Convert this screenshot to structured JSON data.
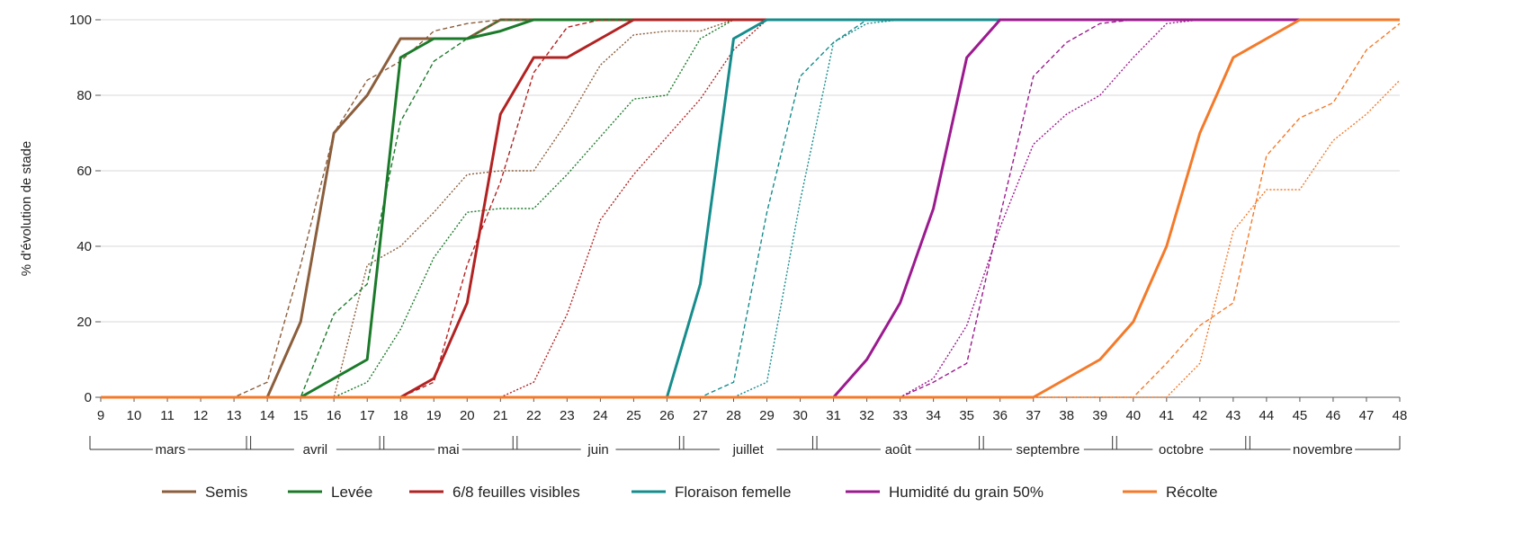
{
  "chart_data": {
    "type": "line",
    "ylabel": "% d'évolution de stade",
    "xlabel": "",
    "ylim": [
      0,
      100
    ],
    "xlim": [
      9,
      48
    ],
    "y_ticks": [
      "0",
      "20",
      "40",
      "60",
      "80",
      "100"
    ],
    "x_ticks": [
      "9",
      "10",
      "11",
      "12",
      "13",
      "14",
      "15",
      "16",
      "17",
      "18",
      "19",
      "20",
      "21",
      "22",
      "23",
      "24",
      "25",
      "26",
      "27",
      "28",
      "29",
      "30",
      "31",
      "32",
      "33",
      "34",
      "35",
      "36",
      "37",
      "38",
      "39",
      "40",
      "41",
      "42",
      "43",
      "44",
      "45",
      "46",
      "47",
      "48"
    ],
    "months": [
      {
        "label": "mars",
        "start": 9,
        "end": 13.5
      },
      {
        "label": "avril",
        "start": 13.7,
        "end": 17.5
      },
      {
        "label": "mai",
        "start": 17.7,
        "end": 21.5
      },
      {
        "label": "juin",
        "start": 21.7,
        "end": 26.5
      },
      {
        "label": "juillet",
        "start": 26.7,
        "end": 30.5
      },
      {
        "label": "août",
        "start": 30.7,
        "end": 35.5
      },
      {
        "label": "septembre",
        "start": 35.7,
        "end": 39.5
      },
      {
        "label": "octobre",
        "start": 39.7,
        "end": 43.5
      },
      {
        "label": "novembre",
        "start": 43.7,
        "end": 48
      }
    ],
    "grid": "horizontal",
    "legend_position": "bottom",
    "series": [
      {
        "name": "Semis",
        "color": "#8B5E3C",
        "style": "solid",
        "x": [
          9,
          14,
          15,
          16,
          17,
          18,
          19,
          20,
          21,
          22,
          48
        ],
        "y": [
          0,
          0,
          20,
          70,
          80,
          95,
          95,
          95,
          100,
          100,
          100
        ]
      },
      {
        "name": "",
        "color": "#8B5E3C",
        "style": "dashed",
        "x": [
          9,
          13,
          14,
          15,
          16,
          17,
          18,
          19,
          20,
          21,
          48
        ],
        "y": [
          0,
          0,
          4,
          35,
          70,
          84,
          89,
          97,
          99,
          100,
          100
        ]
      },
      {
        "name": "",
        "color": "#8B5E3C",
        "style": "dotted",
        "x": [
          9,
          16,
          17,
          18,
          19,
          20,
          21,
          22,
          23,
          24,
          25,
          26,
          27,
          28,
          29,
          48
        ],
        "y": [
          0,
          0,
          35,
          40,
          49,
          59,
          60,
          60,
          73,
          88,
          96,
          97,
          97,
          100,
          100,
          100
        ]
      },
      {
        "name": "Levée",
        "color": "#1B7A2A",
        "style": "solid",
        "x": [
          9,
          15,
          16,
          17,
          18,
          19,
          20,
          21,
          22,
          48
        ],
        "y": [
          0,
          0,
          5,
          10,
          90,
          95,
          95,
          97,
          100,
          100
        ]
      },
      {
        "name": "",
        "color": "#1B7A2A",
        "style": "dashed",
        "x": [
          9,
          15,
          16,
          17,
          18,
          19,
          20,
          21,
          22,
          48
        ],
        "y": [
          0,
          0,
          22,
          30,
          73,
          89,
          95,
          100,
          100,
          100
        ]
      },
      {
        "name": "",
        "color": "#1B7A2A",
        "style": "dotted",
        "x": [
          9,
          16,
          17,
          18,
          19,
          20,
          21,
          22,
          23,
          24,
          25,
          26,
          27,
          28,
          29,
          48
        ],
        "y": [
          0,
          0,
          4,
          18,
          37,
          49,
          50,
          50,
          59,
          69,
          79,
          80,
          95,
          100,
          100,
          100
        ]
      },
      {
        "name": "6/8 feuilles visibles",
        "color": "#B22222",
        "style": "solid",
        "x": [
          9,
          18,
          19,
          20,
          21,
          22,
          23,
          24,
          25,
          48
        ],
        "y": [
          0,
          0,
          5,
          25,
          75,
          90,
          90,
          95,
          100,
          100
        ]
      },
      {
        "name": "",
        "color": "#B22222",
        "style": "dashed",
        "x": [
          9,
          18,
          19,
          20,
          21,
          22,
          23,
          24,
          25,
          48
        ],
        "y": [
          0,
          0,
          4,
          35,
          57,
          86,
          98,
          100,
          100,
          100
        ]
      },
      {
        "name": "",
        "color": "#B22222",
        "style": "dotted",
        "x": [
          9,
          21,
          22,
          23,
          24,
          25,
          26,
          27,
          28,
          29,
          30,
          48
        ],
        "y": [
          0,
          0,
          4,
          22,
          47,
          59,
          69,
          79,
          92,
          100,
          100,
          100
        ]
      },
      {
        "name": "Floraison femelle",
        "color": "#168C8C",
        "style": "solid",
        "x": [
          9,
          26,
          27,
          28,
          29,
          48
        ],
        "y": [
          0,
          0,
          30,
          95,
          100,
          100
        ]
      },
      {
        "name": "",
        "color": "#168C8C",
        "style": "dashed",
        "x": [
          9,
          27,
          28,
          29,
          30,
          31,
          32,
          33,
          48
        ],
        "y": [
          0,
          0,
          4,
          49,
          85,
          94,
          100,
          100,
          100
        ]
      },
      {
        "name": "",
        "color": "#168C8C",
        "style": "dotted",
        "x": [
          9,
          28,
          29,
          30,
          31,
          32,
          33,
          48
        ],
        "y": [
          0,
          0,
          4,
          52,
          94,
          99,
          100,
          100
        ]
      },
      {
        "name": "Humidité du grain 50%",
        "color": "#9B1B8E",
        "style": "solid",
        "x": [
          9,
          31,
          32,
          33,
          34,
          35,
          36,
          48
        ],
        "y": [
          0,
          0,
          10,
          25,
          50,
          90,
          100,
          100
        ]
      },
      {
        "name": "",
        "color": "#9B1B8E",
        "style": "dashed",
        "x": [
          9,
          33,
          34,
          35,
          36,
          37,
          38,
          39,
          40,
          48
        ],
        "y": [
          0,
          0,
          4,
          9,
          48,
          85,
          94,
          99,
          100,
          100
        ]
      },
      {
        "name": "",
        "color": "#9B1B8E",
        "style": "dotted",
        "x": [
          9,
          33,
          34,
          35,
          36,
          37,
          38,
          39,
          40,
          41,
          42,
          48
        ],
        "y": [
          0,
          0,
          5,
          19,
          45,
          67,
          75,
          80,
          90,
          99,
          100,
          100
        ]
      },
      {
        "name": "Récolte",
        "color": "#F47A2A",
        "style": "solid",
        "x": [
          9,
          37,
          38,
          39,
          40,
          41,
          42,
          43,
          44,
          45,
          48
        ],
        "y": [
          0,
          0,
          5,
          10,
          20,
          40,
          70,
          90,
          95,
          100,
          100
        ]
      },
      {
        "name": "",
        "color": "#F47A2A",
        "style": "dashed",
        "x": [
          9,
          40,
          41,
          42,
          43,
          44,
          45,
          46,
          47,
          48
        ],
        "y": [
          0,
          0,
          9,
          19,
          25,
          64,
          74,
          78,
          92,
          99
        ]
      },
      {
        "name": "",
        "color": "#F47A2A",
        "style": "dotted",
        "x": [
          9,
          41,
          42,
          43,
          44,
          45,
          46,
          47,
          48
        ],
        "y": [
          0,
          0,
          9,
          44,
          55,
          55,
          68,
          75,
          84
        ]
      }
    ]
  }
}
